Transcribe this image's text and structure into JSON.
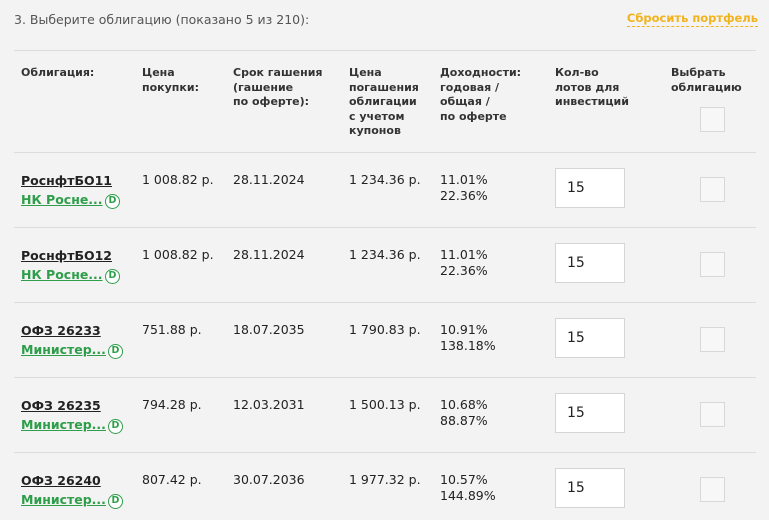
{
  "header": {
    "title": "3. Выберите облигацию (показано 5 из 210):",
    "reset_label": "Сбросить портфель"
  },
  "columns": {
    "bond": "Облигация:",
    "price": "Цена\nпокупки:",
    "maturity": "Срок гашения\n(гашение\nпо оферте):",
    "redemption": "Цена\nпогашения\nоблигации\nс учетом\nкупонов",
    "yield": "Доходности:\nгодовая /\nобщая /\nпо оферте",
    "lots": "Кол-во\nлотов для\nинвестиций",
    "select": "Выбрать\nоблигацию"
  },
  "icons": {
    "dividend": "D"
  },
  "rows": [
    {
      "name": "РоснфтБО11",
      "issuer": "НК Росне...",
      "price": "1 008.82 р.",
      "maturity": "28.11.2024",
      "redemption": "1 234.36 р.",
      "yield_annual": "11.01%",
      "yield_total": "22.36%",
      "lots": "15"
    },
    {
      "name": "РоснфтБО12",
      "issuer": "НК Росне...",
      "price": "1 008.82 р.",
      "maturity": "28.11.2024",
      "redemption": "1 234.36 р.",
      "yield_annual": "11.01%",
      "yield_total": "22.36%",
      "lots": "15"
    },
    {
      "name": "ОФЗ 26233",
      "issuer": "Министер...",
      "price": "751.88 р.",
      "maturity": "18.07.2035",
      "redemption": "1 790.83 р.",
      "yield_annual": "10.91%",
      "yield_total": "138.18%",
      "lots": "15"
    },
    {
      "name": "ОФЗ 26235",
      "issuer": "Министер...",
      "price": "794.28 р.",
      "maturity": "12.03.2031",
      "redemption": "1 500.13 р.",
      "yield_annual": "10.68%",
      "yield_total": "88.87%",
      "lots": "15"
    },
    {
      "name": "ОФЗ 26240",
      "issuer": "Министер...",
      "price": "807.42 р.",
      "maturity": "30.07.2036",
      "redemption": "1 977.32 р.",
      "yield_annual": "10.57%",
      "yield_total": "144.89%",
      "lots": "15"
    }
  ]
}
